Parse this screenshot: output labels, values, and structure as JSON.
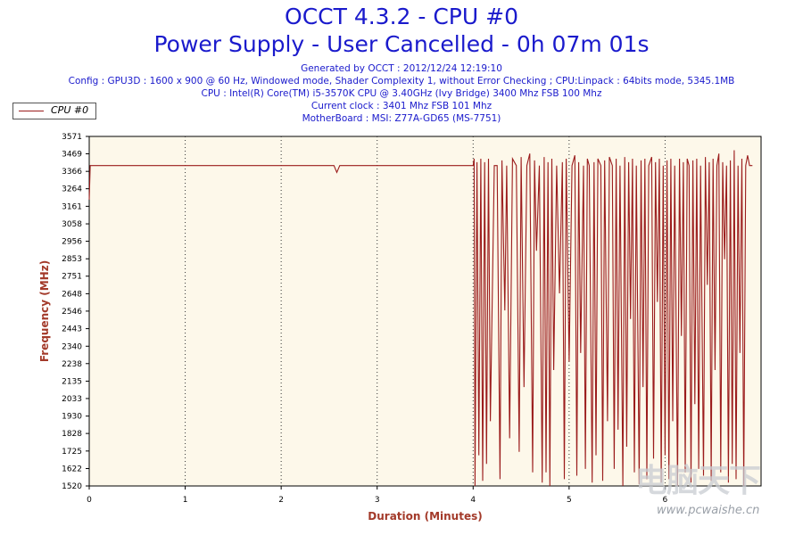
{
  "header": {
    "title": "OCCT 4.3.2 - CPU #0",
    "subtitle": "Power Supply - User Cancelled - 0h 07m 01s",
    "lines": [
      "Generated by OCCT : 2012/12/24 12:19:10",
      "Config : GPU3D : 1600 x 900 @ 60 Hz, Windowed mode, Shader Complexity 1, without Error Checking ; CPU:Linpack : 64bits mode, 5345.1MB",
      "CPU : Intel(R) Core(TM) i5-3570K CPU @ 3.40GHz (Ivy Bridge) 3400 Mhz FSB 100 Mhz",
      "Current clock : 3401 Mhz FSB 101 Mhz",
      "MotherBoard : MSI: Z77A-GD65 (MS-7751)"
    ]
  },
  "watermark": {
    "logo": "电脑天下",
    "url": "www.pcwaishe.cn"
  },
  "colors": {
    "series": "#9b1c1c",
    "plot_bg": "#fdf8ea",
    "axis_label": "#a33a2a",
    "title": "#1a1acc"
  },
  "chart_data": {
    "type": "line",
    "title": "OCCT 4.3.2 - CPU #0",
    "xlabel": "Duration (Minutes)",
    "ylabel": "Frequency (MHz)",
    "xlim": [
      0,
      7
    ],
    "ylim": [
      1520,
      3571
    ],
    "x_ticks": [
      0,
      1,
      2,
      3,
      4,
      5,
      6
    ],
    "x_tick_labels": [
      "0",
      "1",
      "2",
      "3",
      "4",
      "5",
      "6"
    ],
    "y_ticks": [
      1520,
      1622,
      1725,
      1828,
      1930,
      2033,
      2135,
      2238,
      2340,
      2443,
      2546,
      2648,
      2751,
      2853,
      2956,
      3058,
      3161,
      3264,
      3366,
      3469,
      3571
    ],
    "grid": "vertical dotted",
    "legend": "top-left",
    "series": [
      {
        "name": "CPU #0",
        "points": [
          [
            0,
            3200
          ],
          [
            0.01,
            3400
          ],
          [
            2.55,
            3400
          ],
          [
            2.58,
            3360
          ],
          [
            2.61,
            3400
          ],
          [
            4.0,
            3400
          ],
          [
            4.01,
            3440
          ],
          [
            4.02,
            1520
          ],
          [
            4.04,
            3420
          ],
          [
            4.06,
            1700
          ],
          [
            4.08,
            3440
          ],
          [
            4.1,
            1550
          ],
          [
            4.12,
            3420
          ],
          [
            4.14,
            1650
          ],
          [
            4.16,
            3440
          ],
          [
            4.18,
            1900
          ],
          [
            4.22,
            3400
          ],
          [
            4.25,
            3400
          ],
          [
            4.28,
            1560
          ],
          [
            4.3,
            3430
          ],
          [
            4.33,
            2550
          ],
          [
            4.35,
            3400
          ],
          [
            4.38,
            1800
          ],
          [
            4.41,
            3440
          ],
          [
            4.45,
            3400
          ],
          [
            4.48,
            1720
          ],
          [
            4.5,
            3450
          ],
          [
            4.53,
            2100
          ],
          [
            4.56,
            3400
          ],
          [
            4.59,
            3470
          ],
          [
            4.62,
            1600
          ],
          [
            4.64,
            3430
          ],
          [
            4.66,
            2900
          ],
          [
            4.69,
            3400
          ],
          [
            4.72,
            1540
          ],
          [
            4.74,
            3450
          ],
          [
            4.76,
            1600
          ],
          [
            4.78,
            3420
          ],
          [
            4.8,
            1520
          ],
          [
            4.82,
            3440
          ],
          [
            4.84,
            2200
          ],
          [
            4.87,
            3400
          ],
          [
            4.9,
            2650
          ],
          [
            4.93,
            3420
          ],
          [
            4.95,
            1560
          ],
          [
            4.97,
            3440
          ],
          [
            5.0,
            2250
          ],
          [
            5.03,
            3400
          ],
          [
            5.06,
            3460
          ],
          [
            5.08,
            1580
          ],
          [
            5.1,
            3420
          ],
          [
            5.12,
            2300
          ],
          [
            5.15,
            3400
          ],
          [
            5.17,
            1620
          ],
          [
            5.19,
            3440
          ],
          [
            5.21,
            3400
          ],
          [
            5.24,
            1540
          ],
          [
            5.26,
            3420
          ],
          [
            5.28,
            1700
          ],
          [
            5.3,
            3440
          ],
          [
            5.33,
            3400
          ],
          [
            5.35,
            1550
          ],
          [
            5.37,
            3430
          ],
          [
            5.4,
            1900
          ],
          [
            5.42,
            3450
          ],
          [
            5.45,
            3400
          ],
          [
            5.47,
            1620
          ],
          [
            5.49,
            3440
          ],
          [
            5.51,
            1850
          ],
          [
            5.53,
            3400
          ],
          [
            5.56,
            1520
          ],
          [
            5.58,
            3450
          ],
          [
            5.6,
            1750
          ],
          [
            5.62,
            3420
          ],
          [
            5.64,
            2500
          ],
          [
            5.66,
            3440
          ],
          [
            5.68,
            1600
          ],
          [
            5.7,
            3400
          ],
          [
            5.73,
            1530
          ],
          [
            5.75,
            3430
          ],
          [
            5.77,
            2100
          ],
          [
            5.79,
            3440
          ],
          [
            5.81,
            1560
          ],
          [
            5.83,
            3400
          ],
          [
            5.86,
            3450
          ],
          [
            5.88,
            1680
          ],
          [
            5.9,
            3420
          ],
          [
            5.92,
            2600
          ],
          [
            5.94,
            3440
          ],
          [
            5.96,
            1540
          ],
          [
            5.98,
            3400
          ],
          [
            6.0,
            1700
          ],
          [
            6.02,
            3430
          ],
          [
            6.04,
            1560
          ],
          [
            6.06,
            3440
          ],
          [
            6.08,
            1900
          ],
          [
            6.1,
            3400
          ],
          [
            6.13,
            1520
          ],
          [
            6.15,
            3440
          ],
          [
            6.17,
            2400
          ],
          [
            6.19,
            3420
          ],
          [
            6.21,
            1600
          ],
          [
            6.23,
            3440
          ],
          [
            6.25,
            3400
          ],
          [
            6.27,
            1540
          ],
          [
            6.29,
            3430
          ],
          [
            6.31,
            2000
          ],
          [
            6.33,
            3440
          ],
          [
            6.35,
            1620
          ],
          [
            6.37,
            3400
          ],
          [
            6.4,
            1580
          ],
          [
            6.42,
            3450
          ],
          [
            6.44,
            2700
          ],
          [
            6.46,
            3420
          ],
          [
            6.48,
            1550
          ],
          [
            6.5,
            3440
          ],
          [
            6.52,
            2200
          ],
          [
            6.54,
            3400
          ],
          [
            6.56,
            3470
          ],
          [
            6.58,
            1600
          ],
          [
            6.6,
            3420
          ],
          [
            6.62,
            2850
          ],
          [
            6.64,
            3400
          ],
          [
            6.66,
            1540
          ],
          [
            6.68,
            3430
          ],
          [
            6.7,
            1650
          ],
          [
            6.72,
            3490
          ],
          [
            6.74,
            1560
          ],
          [
            6.76,
            3400
          ],
          [
            6.78,
            2300
          ],
          [
            6.8,
            3440
          ],
          [
            6.82,
            1520
          ],
          [
            6.84,
            3400
          ],
          [
            6.86,
            3460
          ],
          [
            6.88,
            3400
          ],
          [
            6.91,
            3400
          ]
        ]
      }
    ]
  }
}
